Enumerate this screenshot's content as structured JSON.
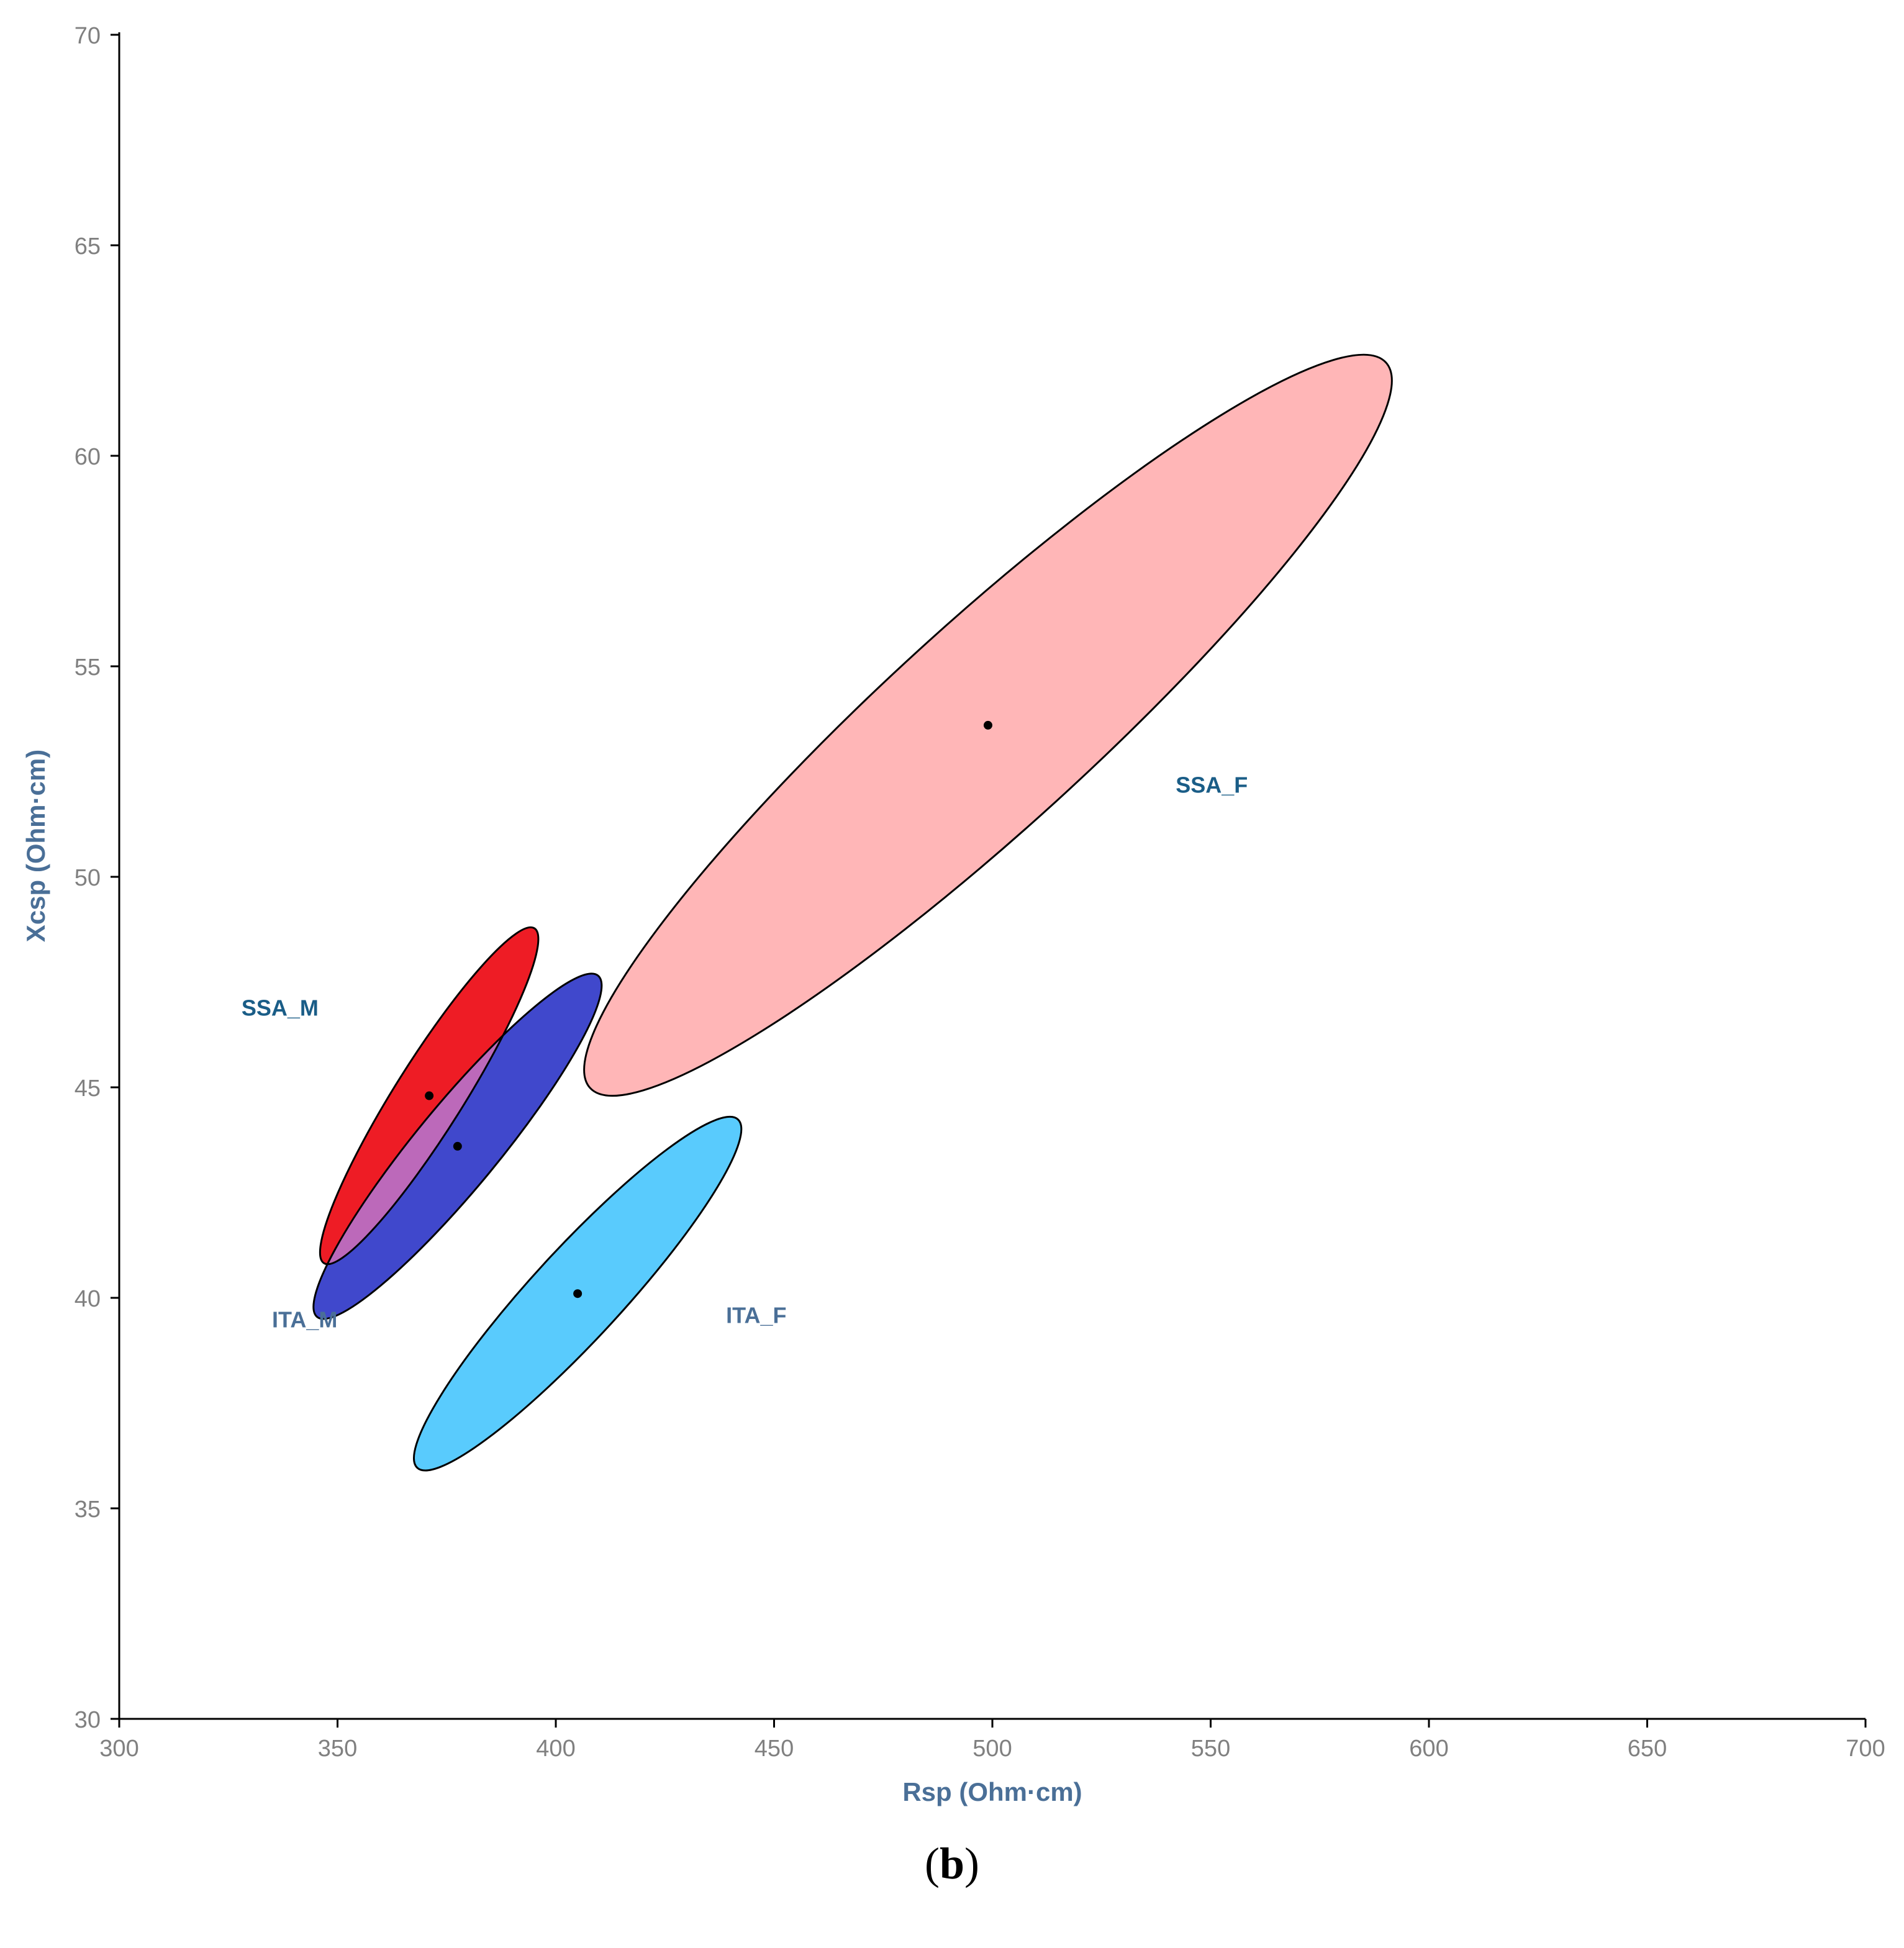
{
  "chart_data": {
    "type": "scatter",
    "subtype": "confidence-ellipses",
    "xlabel": "Rsp (Ohm·cm)",
    "ylabel": "Xcsp (Ohm·cm)",
    "xlim": [
      300,
      700
    ],
    "ylim": [
      30,
      70
    ],
    "xticks": [
      300,
      350,
      400,
      450,
      500,
      550,
      600,
      650,
      700
    ],
    "yticks": [
      30,
      35,
      40,
      45,
      50,
      55,
      60,
      65,
      70
    ],
    "grid": false,
    "series": [
      {
        "name": "SSA_F",
        "color": "#ffb6b7",
        "center": [
          499,
          53.6
        ],
        "x_range": [
          406,
          591
        ],
        "y_range": [
          44.8,
          62.4
        ],
        "label_at": [
          542,
          52.0
        ]
      },
      {
        "name": "ITA_M",
        "color": "#4048cc",
        "center": [
          377.5,
          43.6
        ],
        "x_range": [
          345,
          411
        ],
        "y_range": [
          39.4,
          47.6
        ],
        "label_at": [
          335,
          39.3
        ]
      },
      {
        "name": "SSA_M",
        "color": "#ee1c25",
        "center": [
          371,
          44.8
        ],
        "x_range": [
          347,
          397
        ],
        "y_range": [
          40.8,
          48.8
        ],
        "label_at": [
          328,
          46.7
        ]
      },
      {
        "name": "ITA_F",
        "color": "#59cbfd",
        "center": [
          405,
          40.1
        ],
        "x_range": [
          368,
          443
        ],
        "y_range": [
          36.0,
          44.4
        ],
        "label_at": [
          439,
          39.4
        ]
      }
    ],
    "overlap_colors": {
      "SSA_M_x_ITA_M": "#bc69ba",
      "SSA_F_x_ITA_M": "#d9a8dc"
    },
    "outline_color": "#000000"
  },
  "caption": {
    "open": "(",
    "letter": "b",
    "close": ")"
  }
}
